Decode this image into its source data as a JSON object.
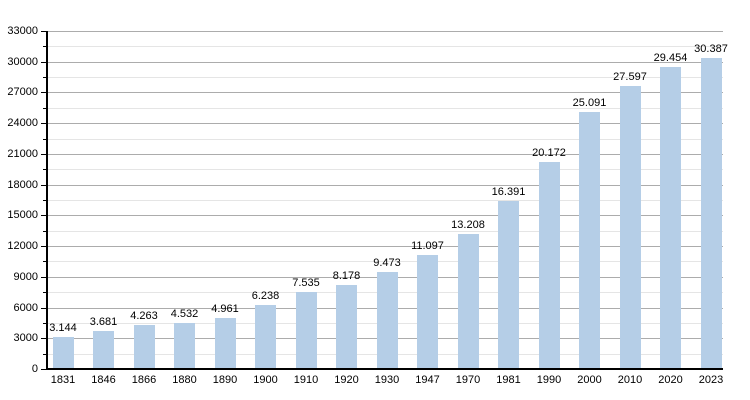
{
  "chart_data": {
    "type": "bar",
    "title": "",
    "xlabel": "",
    "ylabel": "",
    "categories": [
      "1831",
      "1846",
      "1866",
      "1880",
      "1890",
      "1900",
      "1910",
      "1920",
      "1930",
      "1947",
      "1970",
      "1981",
      "1990",
      "2000",
      "2010",
      "2020",
      "2023"
    ],
    "values": [
      3144,
      3681,
      4263,
      4532,
      4961,
      6238,
      7535,
      8178,
      9473,
      11097,
      13208,
      16391,
      20172,
      25091,
      27597,
      29454,
      30387
    ],
    "value_labels": [
      "3.144",
      "3.681",
      "4.263",
      "4.532",
      "4.961",
      "6.238",
      "7.535",
      "8.178",
      "9.473",
      "11.097",
      "13.208",
      "16.391",
      "20.172",
      "25.091",
      "27.597",
      "29.454",
      "30.387"
    ],
    "ylim": [
      0,
      33000
    ],
    "y_major_step": 3000,
    "y_minor_step": 1500,
    "y_tick_labels": [
      "0",
      "3000",
      "6000",
      "9000",
      "12000",
      "15000",
      "18000",
      "21000",
      "24000",
      "27000",
      "30000",
      "33000"
    ],
    "grid": true,
    "legend": false,
    "colors": {
      "bar_fill": "#B5CEE7",
      "grid_major": "#ACACAC",
      "grid_minor": "#E5E5E5",
      "axis": "#000000",
      "text": "#000000",
      "background": "#FFFFFF"
    }
  }
}
